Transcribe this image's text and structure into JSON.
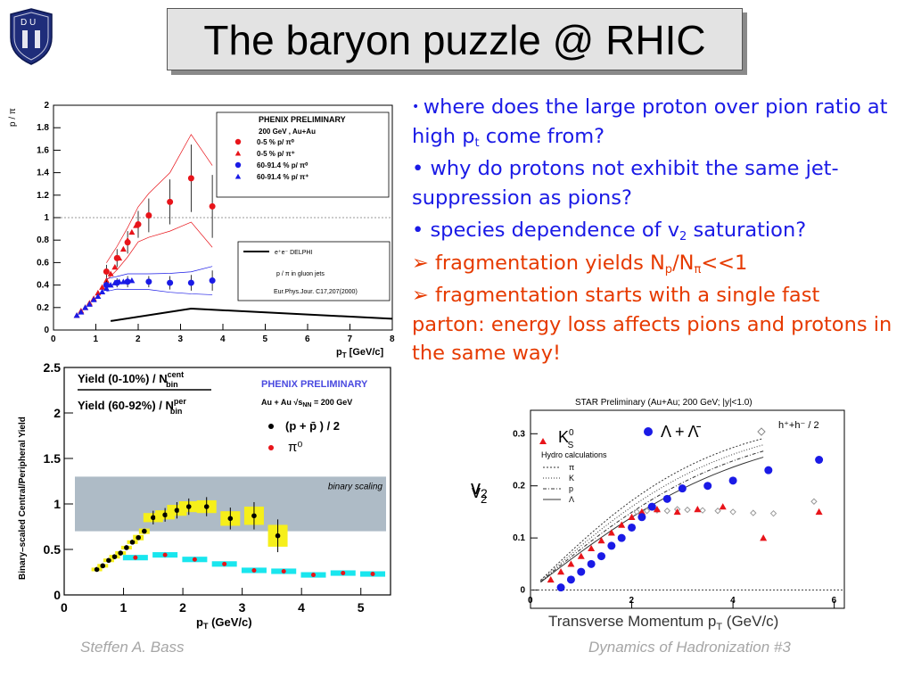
{
  "slide": {
    "title": "The baryon puzzle @ RHIC",
    "logo_letters": "D U",
    "bullets": [
      {
        "type": "dot",
        "color": "#1a1ae6",
        "pre": "where does the large proton over pion ratio at high p",
        "sub": "t",
        "post": " come from?"
      },
      {
        "type": "dot",
        "color": "#1a1ae6",
        "pre": "why do protons not exhibit the same jet- suppression as pions?",
        "sub": "",
        "post": ""
      },
      {
        "type": "dot",
        "color": "#1a1ae6",
        "pre": "species dependence of v",
        "sub": "2",
        "post": " saturation?"
      },
      {
        "type": "arrow",
        "color": "#e63a00",
        "pre": "fragmentation yields N",
        "sub": "p",
        "post": "/N",
        "sub2": "π",
        "post2": "<<1"
      },
      {
        "type": "arrow",
        "color": "#e63a00",
        "pre": "fragmentation starts with a single fast parton: energy loss affects pions and protons in the same way!",
        "sub": "",
        "post": ""
      }
    ],
    "footer_left": "Steffen A. Bass",
    "footer_right": "Dynamics of Hadronization  #3"
  },
  "chart_data": [
    {
      "type": "scatter",
      "xlabel": "p",
      "xlabel_sub": "T",
      "xlabel_unit": " [GeV/c]",
      "ylabel": "p / π",
      "xlim": [
        0,
        8
      ],
      "ylim": [
        0,
        2
      ],
      "x_ticks": [
        "0",
        "1",
        "2",
        "3",
        "4",
        "5",
        "6",
        "7",
        "8"
      ],
      "y_ticks": [
        "0",
        "0.2",
        "0.4",
        "0.6",
        "0.8",
        "1",
        "1.2",
        "1.4",
        "1.6",
        "1.8",
        "2"
      ],
      "legend_title": "PHENIX PRELIMINARY",
      "legend_sub": "200 GeV , Au+Au",
      "legend": [
        {
          "label": "0-5 %     p/ π⁰",
          "color": "#e8141a",
          "marker": "circle"
        },
        {
          "label": "0-5 %     p/ π⁺",
          "color": "#e8141a",
          "marker": "triangle"
        },
        {
          "label": "60-91.4 % p/ π⁰",
          "color": "#1a1ae6",
          "marker": "circle"
        },
        {
          "label": "60-91.4 % p/ π⁺",
          "color": "#1a1ae6",
          "marker": "triangle"
        }
      ],
      "legend2": [
        "e⁺e⁻ DELPHI",
        "p / π in gluon jets",
        "Eur.Phys.Jour. C17,207(2000)"
      ],
      "series": [
        {
          "name": "0-5 % p/π0",
          "x": [
            1.25,
            1.5,
            1.75,
            2.0,
            2.25,
            2.75,
            3.25,
            3.75
          ],
          "y": [
            0.52,
            0.64,
            0.78,
            0.94,
            1.02,
            1.14,
            1.35,
            1.1
          ],
          "err": [
            0.06,
            0.08,
            0.1,
            0.12,
            0.15,
            0.2,
            0.3,
            0.28
          ]
        },
        {
          "name": "0-5 % p/π+",
          "x": [
            0.55,
            0.65,
            0.75,
            0.85,
            0.95,
            1.05,
            1.15,
            1.25,
            1.35,
            1.45,
            1.55,
            1.65,
            1.75,
            1.85,
            1.95
          ],
          "y": [
            0.13,
            0.17,
            0.2,
            0.24,
            0.28,
            0.33,
            0.38,
            0.44,
            0.5,
            0.56,
            0.64,
            0.72,
            0.8,
            0.87,
            0.93
          ]
        },
        {
          "name": "60-91.4 % p/π0",
          "x": [
            1.25,
            1.5,
            1.75,
            2.25,
            2.75,
            3.25,
            3.75
          ],
          "y": [
            0.4,
            0.42,
            0.43,
            0.43,
            0.42,
            0.42,
            0.44
          ],
          "err": [
            0.04,
            0.04,
            0.05,
            0.05,
            0.06,
            0.07,
            0.09
          ]
        },
        {
          "name": "60-91.4 % p/π+",
          "x": [
            0.55,
            0.65,
            0.75,
            0.85,
            0.95,
            1.05,
            1.15,
            1.25,
            1.35,
            1.45,
            1.55,
            1.65,
            1.75,
            1.85
          ],
          "y": [
            0.13,
            0.16,
            0.2,
            0.23,
            0.27,
            0.3,
            0.34,
            0.37,
            0.4,
            0.42,
            0.43,
            0.43,
            0.44,
            0.44
          ]
        },
        {
          "name": "DELPHI",
          "x": [
            1.35,
            3.25,
            8
          ],
          "y": [
            0.08,
            0.19,
            0.1
          ]
        }
      ]
    },
    {
      "type": "scatter",
      "xlabel": "p",
      "xlabel_sub": "T",
      "xlabel_unit": " (GeV/c)",
      "ylabel": "Binary–scaled Central/Peripheral Yield",
      "xlim": [
        0,
        5.5
      ],
      "ylim": [
        0,
        2.5
      ],
      "x_ticks": [
        "0",
        "1",
        "2",
        "3",
        "4",
        "5"
      ],
      "y_ticks": [
        "0",
        "0.5",
        "1",
        "1.5",
        "2",
        "2.5"
      ],
      "ratio_top": "Yield (0-10%) / N",
      "ratio_top_sup": "cent",
      "ratio_top_sub": "bin",
      "ratio_bot": "Yield (60-92%) / N",
      "ratio_bot_sup": "per",
      "ratio_bot_sub": "bin",
      "legend_title": "PHENIX PRELIMINARY",
      "legend_sub": "Au + Au  √s",
      "legend_sub_sub": "NN",
      "legend_sub_post": " = 200 GeV",
      "legend": [
        {
          "label": "(p + p̄  ) / 2",
          "color": "#000000"
        },
        {
          "label": "π⁰",
          "color": "#e8141a"
        }
      ],
      "band_label": "binary scaling",
      "band": [
        0.7,
        1.3
      ],
      "series": [
        {
          "name": "(p + pbar)/2",
          "x": [
            0.55,
            0.65,
            0.75,
            0.85,
            0.95,
            1.05,
            1.15,
            1.25,
            1.35,
            1.5,
            1.7,
            1.9,
            2.1,
            2.4,
            2.8,
            3.2,
            3.6
          ],
          "y": [
            0.28,
            0.32,
            0.38,
            0.42,
            0.46,
            0.52,
            0.58,
            0.63,
            0.7,
            0.85,
            0.88,
            0.93,
            0.97,
            0.97,
            0.84,
            0.87,
            0.65
          ],
          "err": [
            0.02,
            0.02,
            0.02,
            0.02,
            0.02,
            0.02,
            0.02,
            0.03,
            0.03,
            0.05,
            0.05,
            0.06,
            0.06,
            0.07,
            0.08,
            0.1,
            0.12
          ]
        },
        {
          "name": "pi0",
          "x": [
            1.2,
            1.7,
            2.2,
            2.7,
            3.2,
            3.7,
            4.2,
            4.7,
            5.2
          ],
          "y": [
            0.41,
            0.44,
            0.39,
            0.34,
            0.27,
            0.26,
            0.22,
            0.24,
            0.23
          ],
          "err": [
            0.03,
            0.03,
            0.03,
            0.03,
            0.03,
            0.03,
            0.03,
            0.03,
            0.03
          ]
        }
      ]
    },
    {
      "type": "scatter",
      "title": "STAR Preliminary (Au+Au; 200 GeV; |y|<1.0)",
      "xlabel": "Transverse Momentum p",
      "xlabel_sub": "T",
      "xlabel_unit": " (GeV/c)",
      "ylabel": "v",
      "ylabel_sub": "2",
      "xlim": [
        0,
        6.2
      ],
      "ylim": [
        -0.035,
        0.345
      ],
      "x_ticks": [
        "0",
        "2",
        "4",
        "6"
      ],
      "y_ticks": [
        "0",
        "0.1",
        "0.2",
        "0.3"
      ],
      "legend": [
        {
          "label": "K",
          "sup": "0",
          "sub": "S",
          "color": "#e8141a",
          "marker": "triangle"
        },
        {
          "label": "Λ + Λ̄",
          "color": "#1a1ae6",
          "marker": "circle"
        },
        {
          "label": "h⁺+h⁻ / 2",
          "color": "#888888",
          "marker": "diamond"
        }
      ],
      "hydro_label": "Hydro calculations",
      "hydro_legend": [
        "π",
        "K",
        "p",
        "Λ"
      ],
      "series": [
        {
          "name": "K0S",
          "x": [
            0.4,
            0.6,
            0.8,
            1.0,
            1.2,
            1.4,
            1.6,
            1.8,
            2.0,
            2.2,
            2.5,
            2.9,
            3.3,
            3.8,
            4.6,
            5.7
          ],
          "y": [
            0.02,
            0.035,
            0.05,
            0.065,
            0.08,
            0.095,
            0.11,
            0.125,
            0.14,
            0.15,
            0.155,
            0.15,
            0.155,
            0.16,
            0.1,
            0.15
          ]
        },
        {
          "name": "Lambda",
          "x": [
            0.6,
            0.8,
            1.0,
            1.2,
            1.4,
            1.6,
            1.8,
            2.0,
            2.2,
            2.4,
            2.7,
            3.0,
            3.5,
            4.0,
            4.7,
            5.7
          ],
          "y": [
            0.005,
            0.02,
            0.035,
            0.05,
            0.065,
            0.085,
            0.1,
            0.12,
            0.14,
            0.16,
            0.175,
            0.195,
            0.2,
            0.21,
            0.23,
            0.25
          ]
        }
      ]
    }
  ]
}
